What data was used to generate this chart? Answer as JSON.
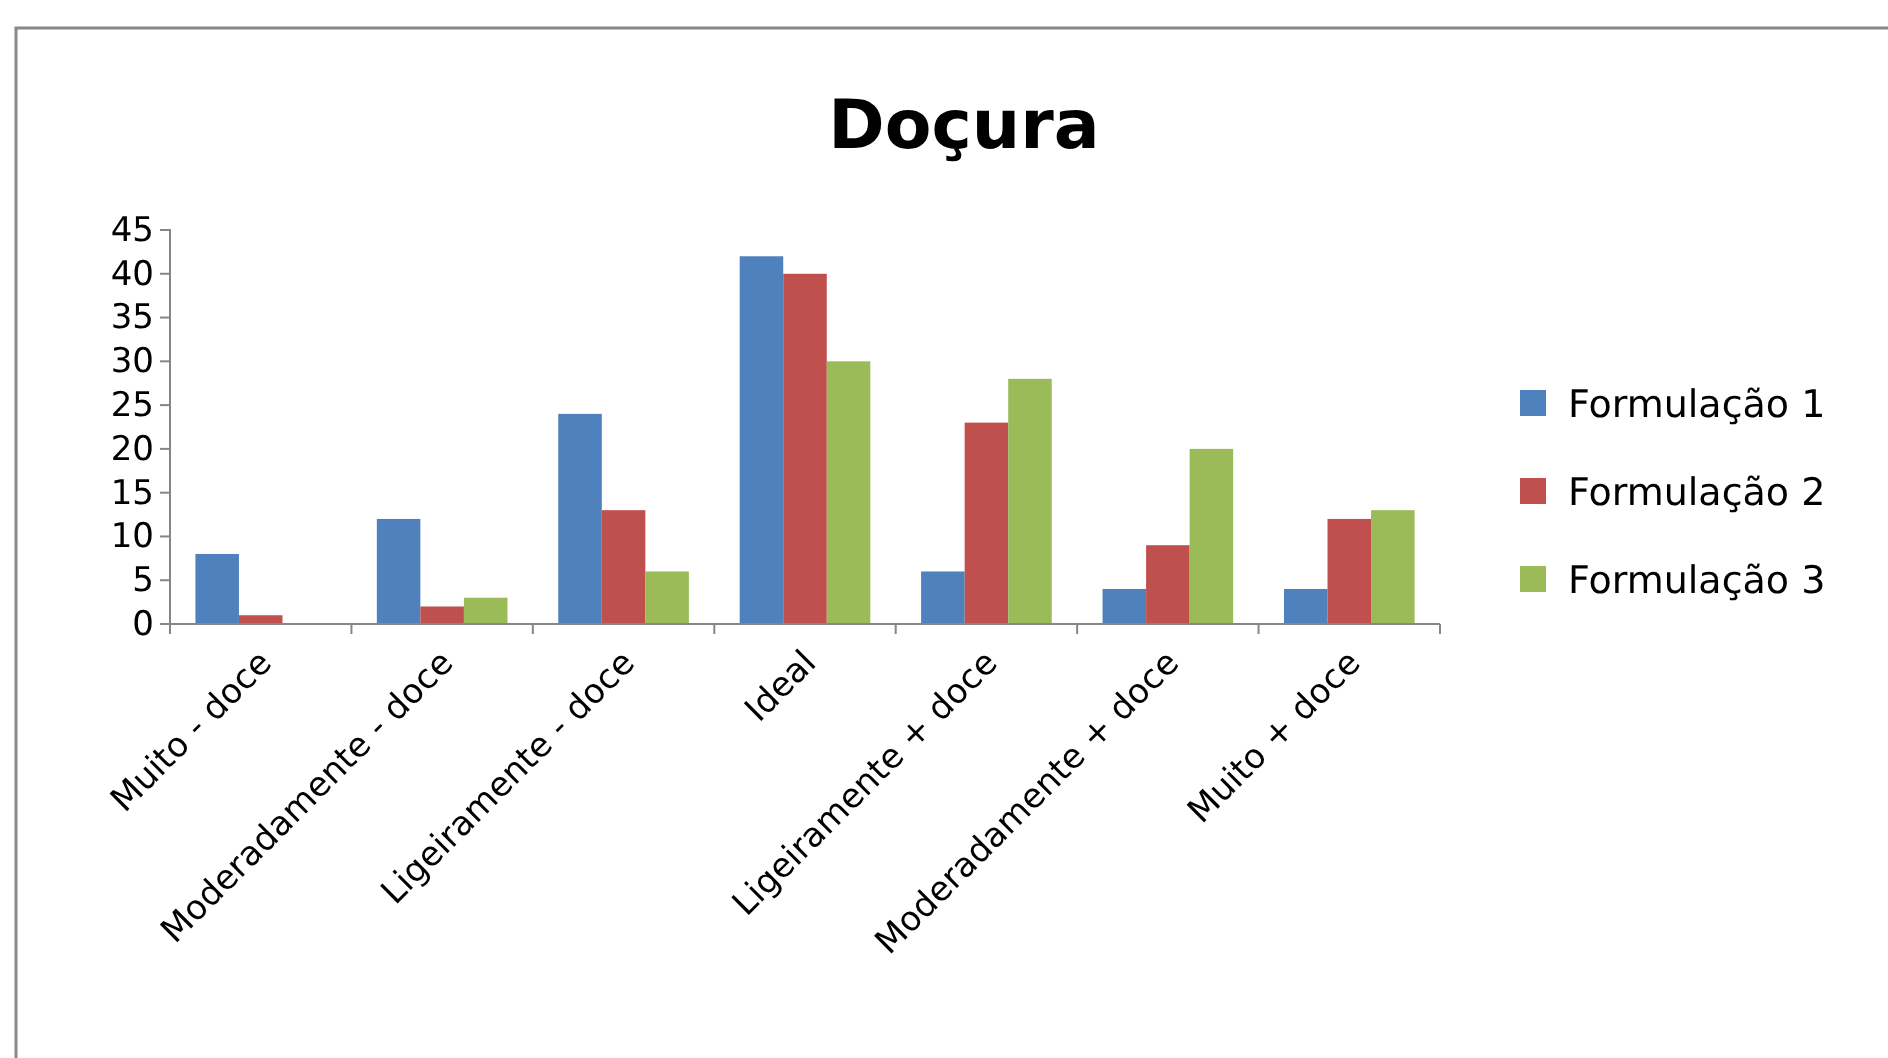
{
  "chart_data": {
    "type": "bar",
    "title": "Doçura",
    "categories": [
      "Muito - doce",
      "Moderadamente - doce",
      "Ligeiramente - doce",
      "Ideal",
      "Ligeiramente + doce",
      "Moderadamente + doce",
      "Muito + doce"
    ],
    "series": [
      {
        "name": "Formulação 1",
        "color": "#4f81bd",
        "values": [
          8,
          12,
          24,
          42,
          6,
          4,
          4
        ]
      },
      {
        "name": "Formulação 2",
        "color": "#c0504d",
        "values": [
          1,
          2,
          13,
          40,
          23,
          9,
          12
        ]
      },
      {
        "name": "Formulação 3",
        "color": "#9bbb59",
        "values": [
          0,
          3,
          6,
          30,
          28,
          20,
          13
        ]
      }
    ],
    "ylim": [
      0,
      45
    ],
    "yticks": [
      0,
      5,
      10,
      15,
      20,
      25,
      30,
      35,
      40,
      45
    ],
    "grid": false,
    "legend": "right"
  }
}
